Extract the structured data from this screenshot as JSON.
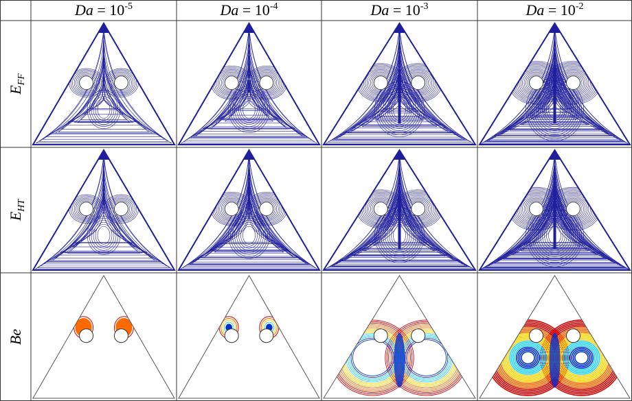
{
  "header": {
    "columns": [
      {
        "var": "Da",
        "base": " = 10",
        "exp": "-5"
      },
      {
        "var": "Da",
        "base": " = 10",
        "exp": "-4"
      },
      {
        "var": "Da",
        "base": " = 10",
        "exp": "-3"
      },
      {
        "var": "Da",
        "base": " = 10",
        "exp": "-2"
      }
    ]
  },
  "rows": [
    {
      "var": "E",
      "sub": "FF"
    },
    {
      "var": "E",
      "sub": "HT"
    },
    {
      "var": "Be"
    }
  ]
}
